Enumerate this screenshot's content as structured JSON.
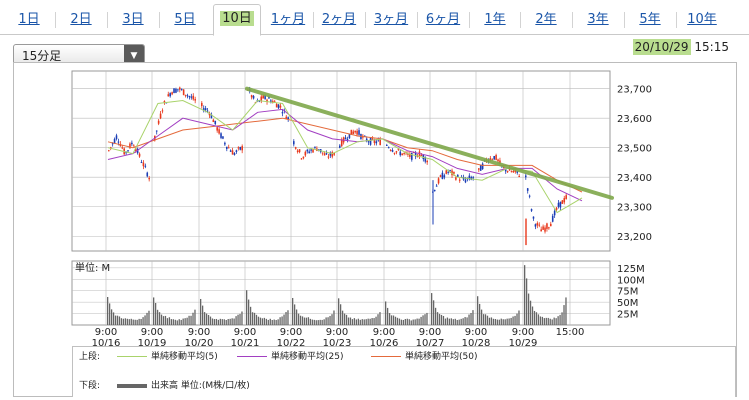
{
  "tabs": [
    {
      "label": "1日",
      "active": false
    },
    {
      "label": "2日",
      "active": false
    },
    {
      "label": "3日",
      "active": false
    },
    {
      "label": "5日",
      "active": false
    },
    {
      "label": "10日",
      "active": true
    },
    {
      "label": "1ヶ月",
      "active": false
    },
    {
      "label": "2ヶ月",
      "active": false
    },
    {
      "label": "3ヶ月",
      "active": false
    },
    {
      "label": "6ヶ月",
      "active": false
    },
    {
      "label": "1年",
      "active": false
    },
    {
      "label": "2年",
      "active": false
    },
    {
      "label": "3年",
      "active": false
    },
    {
      "label": "5年",
      "active": false
    },
    {
      "label": "10年",
      "active": false
    }
  ],
  "interval_select": {
    "value": "15分足"
  },
  "timestamp": {
    "date": "20/10/29",
    "time": "15:15"
  },
  "legend": {
    "upper_label": "上段:",
    "lower_label": "下段:",
    "ma5": "単純移動平均(5)",
    "ma25": "単純移動平均(25)",
    "ma50": "単純移動平均(50)",
    "volume": "出来高 単位:(M株/口/枚)"
  },
  "colors": {
    "up": "#e8391d",
    "down": "#1a3db5",
    "ma5": "#a9d36b",
    "ma25": "#a23fc2",
    "ma50": "#e46a3c",
    "trendline": "#7fa84b",
    "volume": "#666666",
    "grid": "#bbbbbb"
  },
  "chart_data": [
    {
      "type": "candlestick",
      "title": "",
      "y_ticks": [
        "23,700",
        "23,600",
        "23,500",
        "23,400",
        "23,300",
        "23,200"
      ],
      "ylim": [
        23150,
        23760
      ],
      "x_ticks": [
        {
          "time": "9:00",
          "date": "10/16"
        },
        {
          "time": "9:00",
          "date": "10/19"
        },
        {
          "time": "9:00",
          "date": "10/20"
        },
        {
          "time": "9:00",
          "date": "10/21"
        },
        {
          "time": "9:00",
          "date": "10/22"
        },
        {
          "time": "9:00",
          "date": "10/23"
        },
        {
          "time": "9:00",
          "date": "10/26"
        },
        {
          "time": "9:00",
          "date": "10/27"
        },
        {
          "time": "9:00",
          "date": "10/28"
        },
        {
          "time": "9:00",
          "date": "10/29"
        },
        {
          "time": "15:00",
          "date": ""
        }
      ],
      "days": [
        "10/16",
        "10/19",
        "10/20",
        "10/21",
        "10/22",
        "10/23",
        "10/26",
        "10/27",
        "10/28",
        "10/29"
      ],
      "daily_path": [
        [
          23490,
          23540,
          23480,
          23520,
          23460,
          23400
        ],
        [
          23530,
          23640,
          23690,
          23700,
          23680,
          23660
        ],
        [
          23640,
          23620,
          23560,
          23510,
          23480,
          23500
        ],
        [
          23700,
          23650,
          23670,
          23660,
          23640,
          23600
        ],
        [
          23520,
          23470,
          23490,
          23500,
          23470,
          23480
        ],
        [
          23510,
          23540,
          23560,
          23530,
          23520,
          23520
        ],
        [
          23510,
          23490,
          23480,
          23470,
          23480,
          23460
        ],
        [
          23350,
          23400,
          23420,
          23400,
          23390,
          23400
        ],
        [
          23420,
          23460,
          23470,
          23430,
          23420,
          23410
        ],
        [
          23400,
          23250,
          23220,
          23240,
          23300,
          23330
        ]
      ],
      "ma5_path": [
        23500,
        23480,
        23650,
        23660,
        23620,
        23560,
        23660,
        23650,
        23500,
        23480,
        23520,
        23530,
        23480,
        23460,
        23400,
        23390,
        23430,
        23420,
        23280,
        23330
      ],
      "ma25_path": [
        23460,
        23480,
        23540,
        23600,
        23580,
        23560,
        23620,
        23630,
        23560,
        23530,
        23520,
        23530,
        23490,
        23470,
        23430,
        23410,
        23430,
        23430,
        23360,
        23320
      ],
      "ma50_path": [
        23520,
        23500,
        23530,
        23560,
        23570,
        23580,
        23590,
        23600,
        23580,
        23560,
        23540,
        23530,
        23500,
        23490,
        23460,
        23440,
        23440,
        23440,
        23390,
        23350
      ],
      "trendline": {
        "start": 23700,
        "end": 23330
      }
    },
    {
      "type": "bar",
      "title": "",
      "unit_label": "単位: M",
      "y_ticks": [
        "125M",
        "100M",
        "75M",
        "50M",
        "25M"
      ],
      "ylim": [
        0,
        140
      ],
      "daily_volume_profile": [
        [
          60,
          28,
          20,
          16,
          14,
          12,
          12,
          14,
          18,
          30
        ],
        [
          62,
          30,
          22,
          16,
          14,
          12,
          12,
          14,
          20,
          32
        ],
        [
          55,
          26,
          18,
          14,
          12,
          12,
          12,
          14,
          20,
          30
        ],
        [
          75,
          32,
          22,
          16,
          14,
          12,
          12,
          14,
          20,
          34
        ],
        [
          60,
          28,
          20,
          16,
          14,
          12,
          12,
          14,
          18,
          30
        ],
        [
          58,
          26,
          18,
          14,
          12,
          12,
          12,
          14,
          18,
          30
        ],
        [
          50,
          24,
          18,
          14,
          12,
          12,
          12,
          14,
          18,
          28
        ],
        [
          70,
          30,
          22,
          16,
          14,
          12,
          12,
          14,
          20,
          32
        ],
        [
          62,
          28,
          20,
          16,
          14,
          12,
          12,
          14,
          18,
          30
        ],
        [
          130,
          60,
          34,
          22,
          18,
          14,
          14,
          16,
          24,
          60
        ]
      ]
    }
  ]
}
